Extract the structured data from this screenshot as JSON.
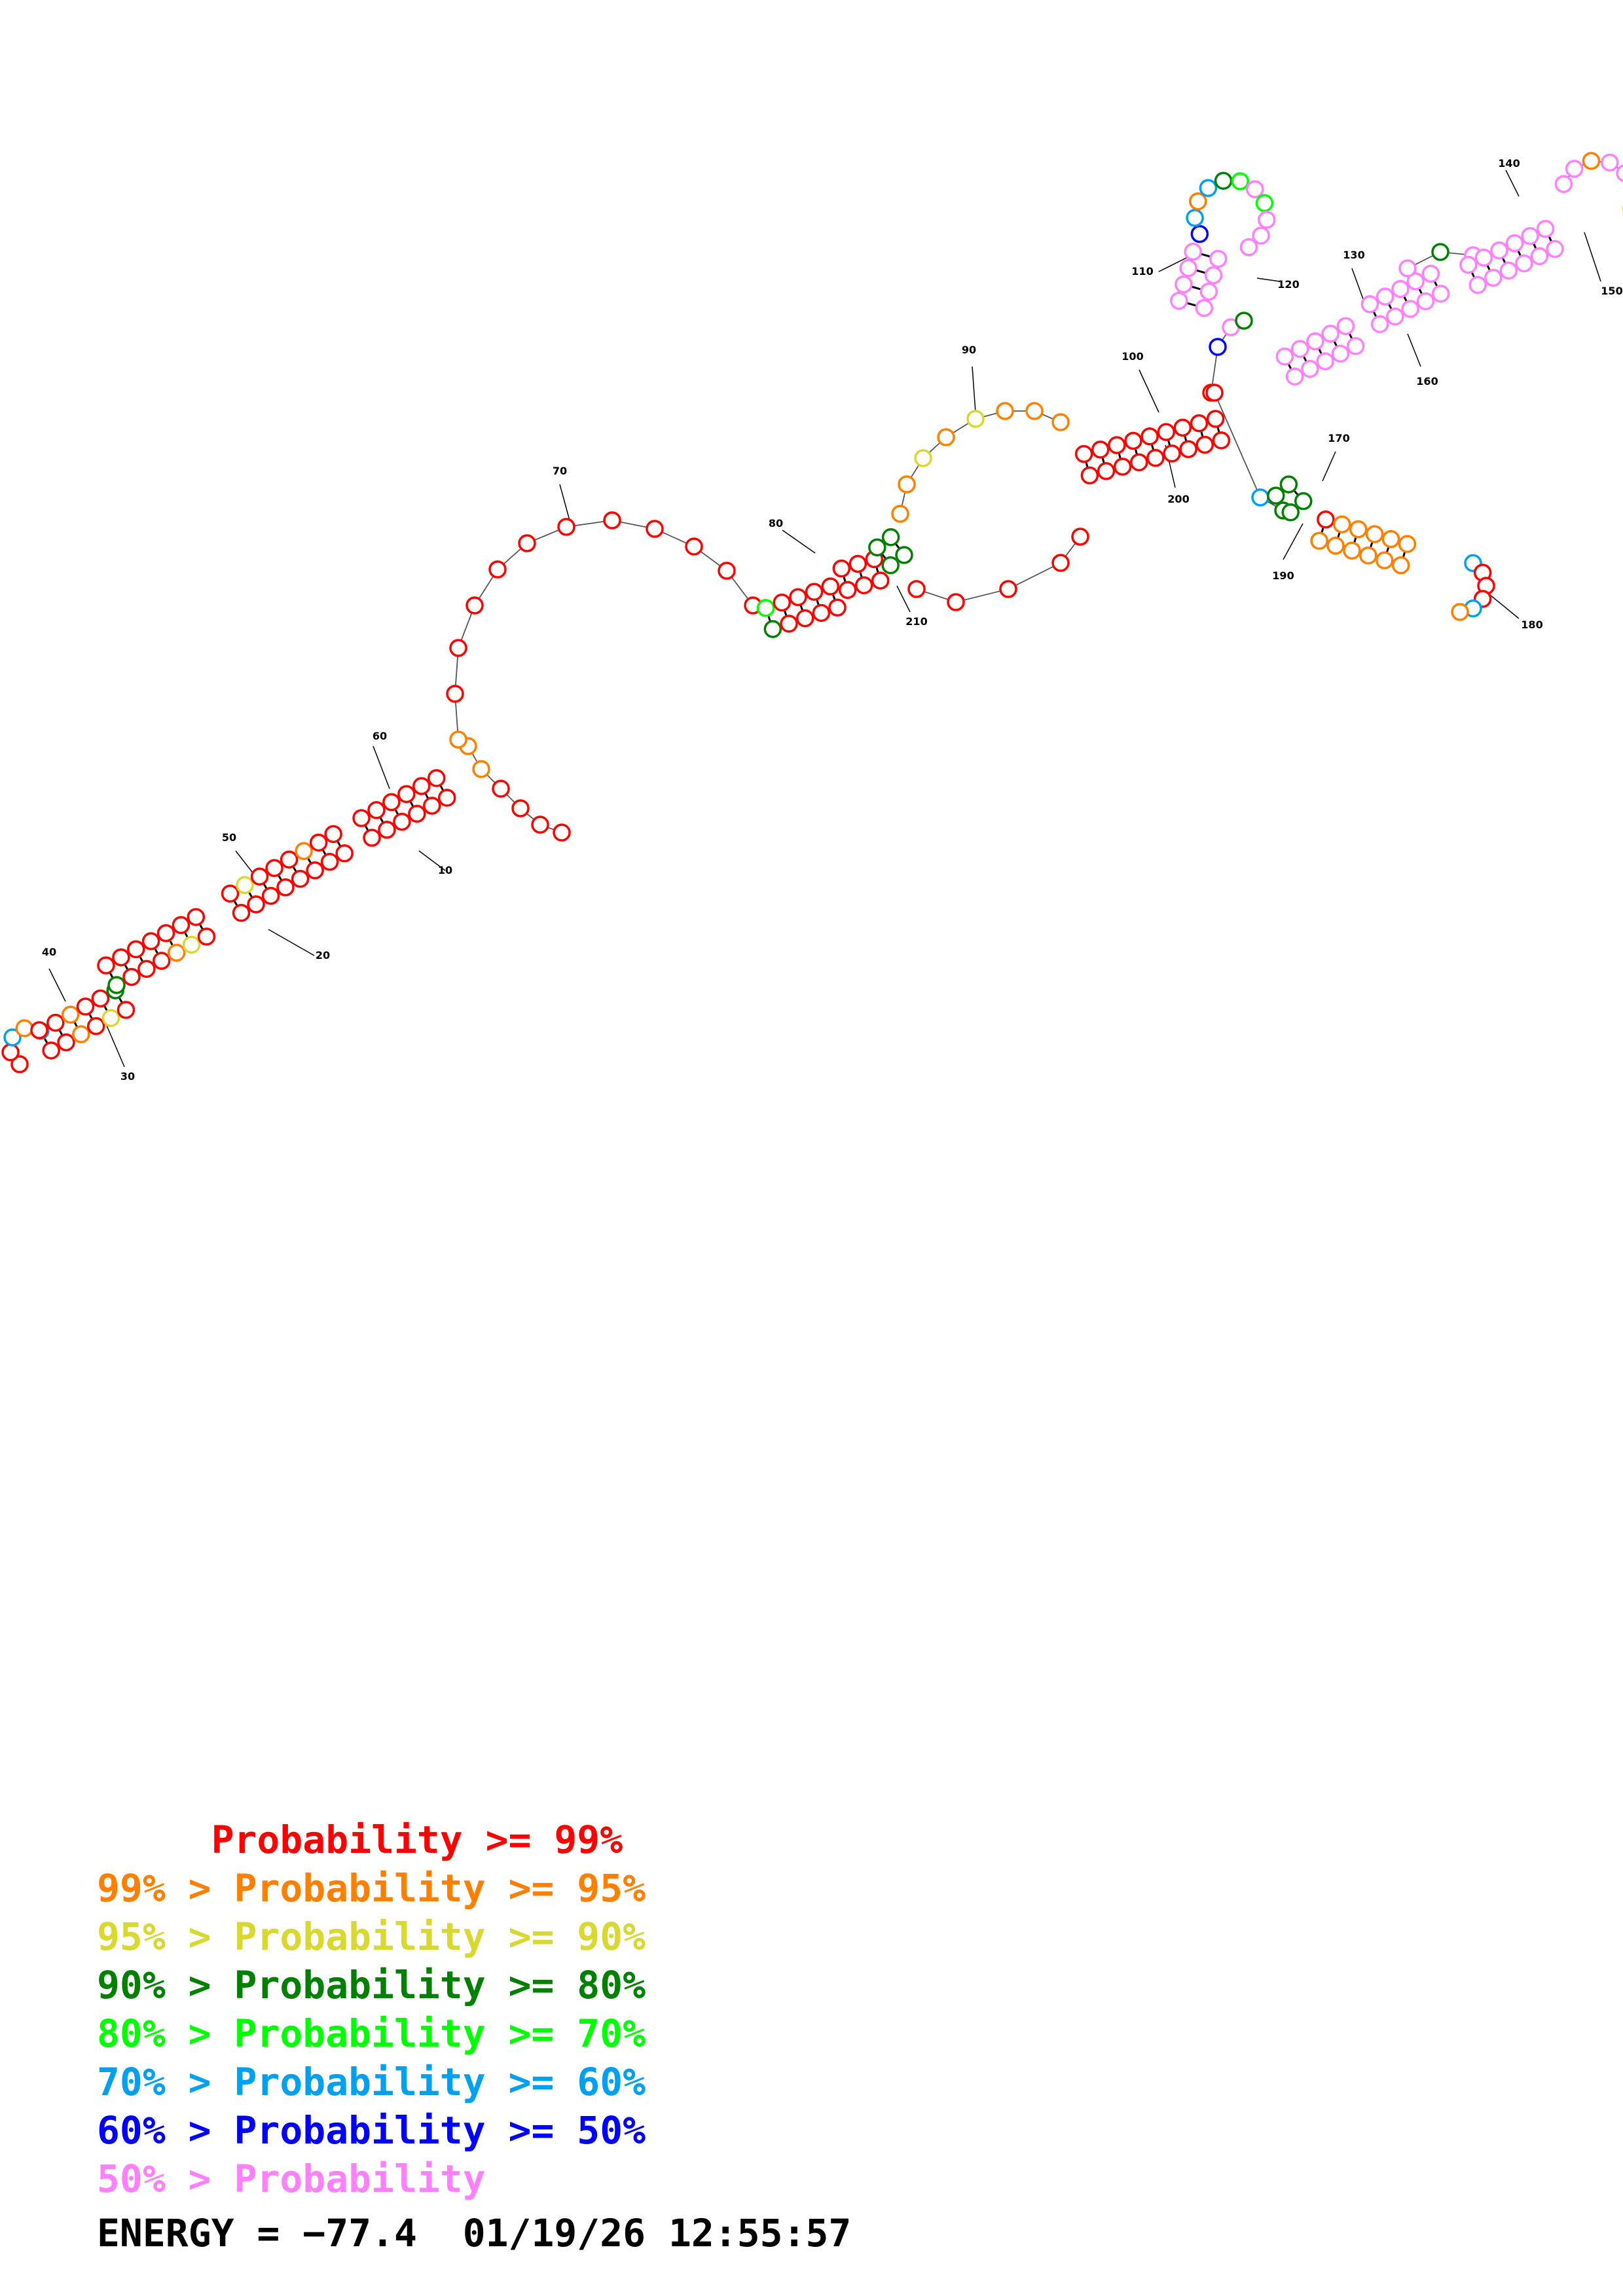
{
  "colors": {
    "p99": "#ff0000",
    "p95": "#ff8000",
    "p90": "#d8d830",
    "p80": "#008000",
    "p70": "#00ff00",
    "p60": "#00a0f0",
    "p50": "#0000ff",
    "lt50": "#ff80ff"
  },
  "legend": {
    "rows": [
      {
        "key": "p99",
        "text": "     Probability >= 99%"
      },
      {
        "key": "p95",
        "text": "99% > Probability >= 95%"
      },
      {
        "key": "p90",
        "text": "95% > Probability >= 90%"
      },
      {
        "key": "p80",
        "text": "90% > Probability >= 80%"
      },
      {
        "key": "p70",
        "text": "80% > Probability >= 70%"
      },
      {
        "key": "p60",
        "text": "70% > Probability >= 60%"
      },
      {
        "key": "p50",
        "text": "60% > Probability >= 50%"
      },
      {
        "key": "lt50",
        "text": "50% > Probability"
      }
    ]
  },
  "footer": {
    "energy_text": "ENERGY = −77.4  01/19/26 12:55:57"
  },
  "index_labels": [
    "10",
    "20",
    "30",
    "40",
    "50",
    "60",
    "70",
    "80",
    "90",
    "100",
    "110",
    "120",
    "130",
    "140",
    "150",
    "160",
    "170",
    "180",
    "190",
    "200",
    "210"
  ]
}
